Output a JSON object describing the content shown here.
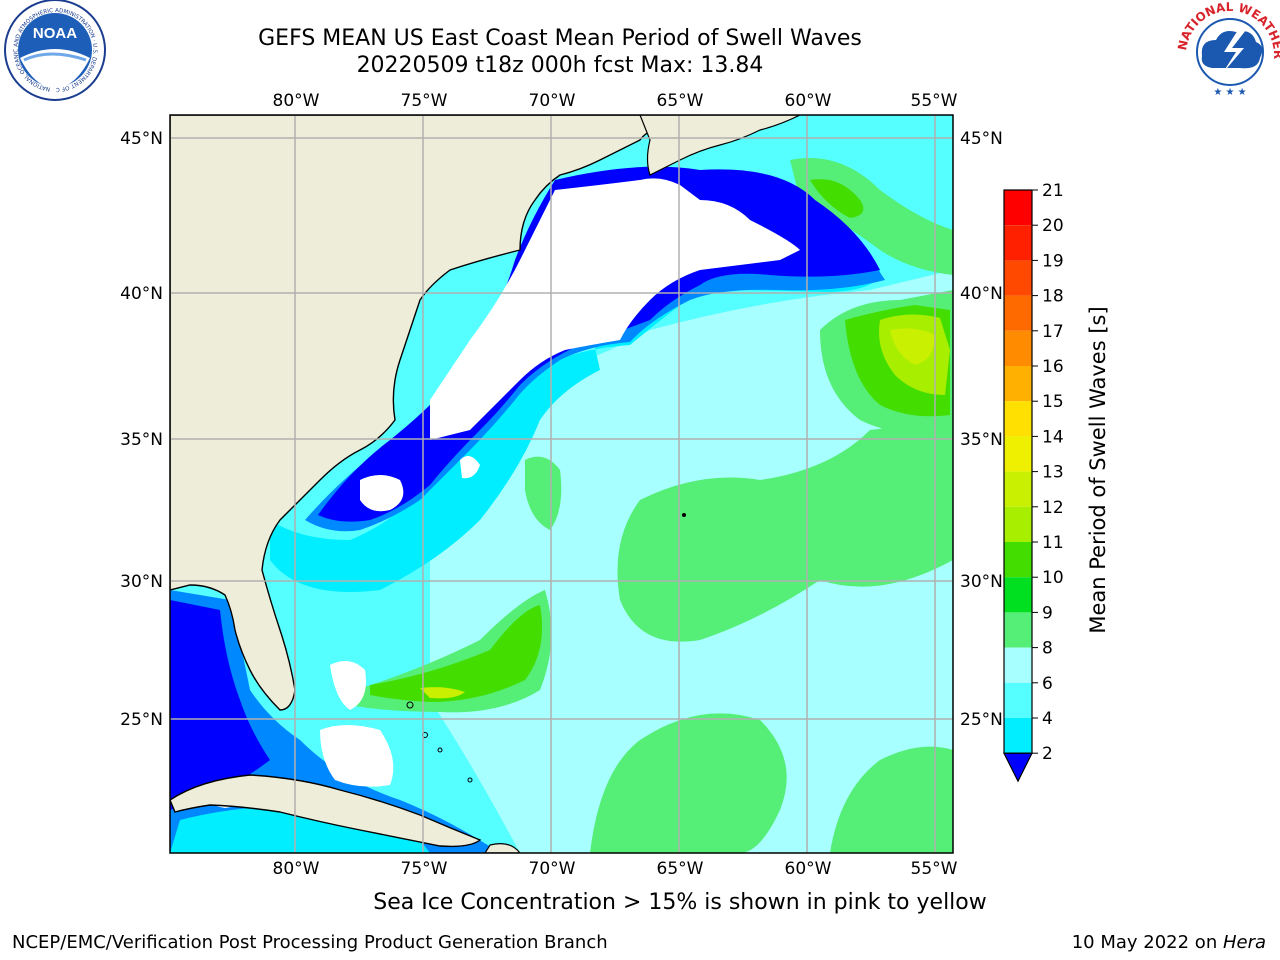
{
  "title": {
    "line1": "GEFS MEAN US East Coast Mean Period of Swell Waves",
    "line2": "20220509 t18z 000h fcst   Max: 13.84"
  },
  "logos": {
    "left": "NOAA",
    "left_ring_text": "NATIONAL OCEANIC AND ATMOSPHERIC ADMINISTRATION · U.S. DEPARTMENT OF COMMERCE",
    "right_ring_text": "NATIONAL WEATHER SERVICE"
  },
  "map": {
    "lon_labels": [
      "80°W",
      "75°W",
      "70°W",
      "65°W",
      "60°W",
      "55°W"
    ],
    "lat_labels": [
      "45°N",
      "40°N",
      "35°N",
      "30°N",
      "25°N"
    ],
    "land_color": "#eeedda",
    "no_data_color": "#ffffff"
  },
  "colorbar": {
    "label": "Mean Period of Swell Waves [s]",
    "ticks": [
      "21",
      "20",
      "19",
      "18",
      "17",
      "16",
      "15",
      "14",
      "13",
      "12",
      "11",
      "10",
      "9",
      "8",
      "6",
      "4",
      "2"
    ],
    "colors": [
      "#ff0000",
      "#ff2000",
      "#ff4800",
      "#ff6a00",
      "#ff8c00",
      "#ffb000",
      "#ffe000",
      "#eef000",
      "#c8f000",
      "#a8ee00",
      "#44dd00",
      "#00e020",
      "#55ee77",
      "#a8ffff",
      "#55ffff",
      "#00eeff",
      "#0088ff"
    ],
    "extend_color": "#0000ff"
  },
  "note": "Sea Ice Concentration > 15% is shown in pink to yellow",
  "footer": {
    "left": "NCEP/EMC/Verification Post Processing Product Generation Branch",
    "right_date": "10 May 2022 on ",
    "right_machine": "Hera"
  }
}
